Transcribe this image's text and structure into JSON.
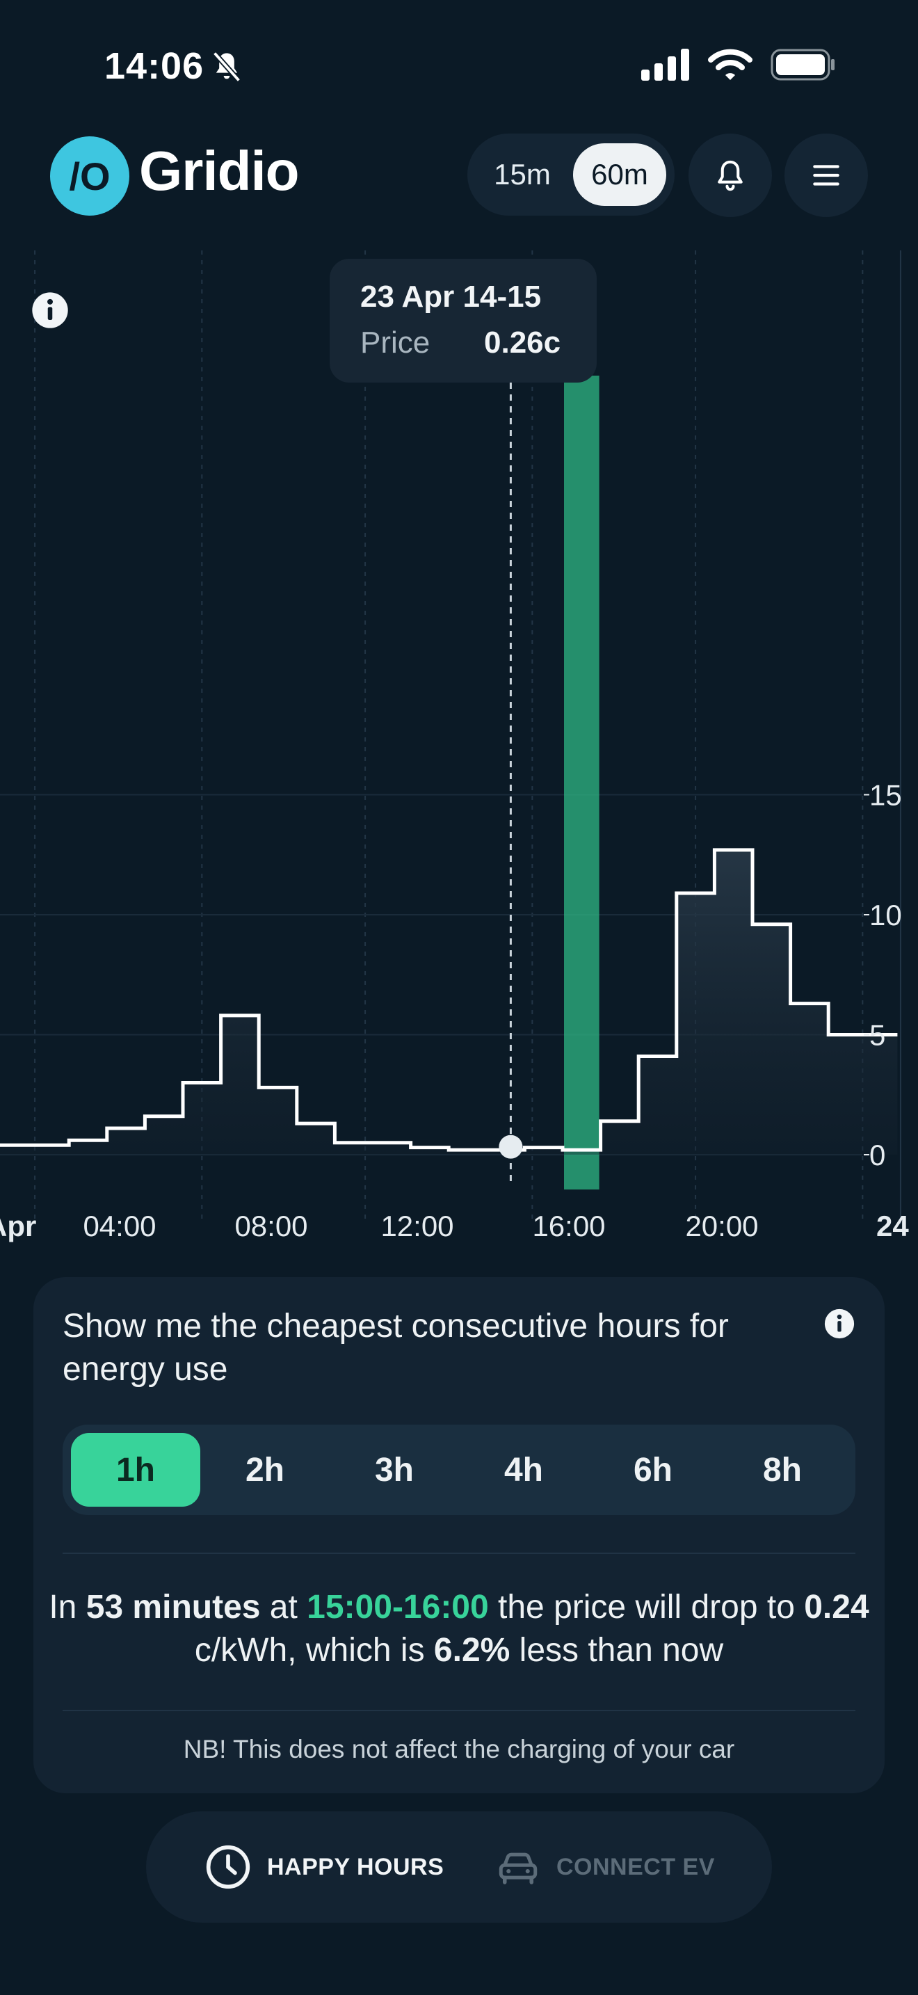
{
  "status": {
    "time": "14:06"
  },
  "app": {
    "logo_mark": "/O",
    "name": "Gridio"
  },
  "resolution": {
    "options": [
      "15m",
      "60m"
    ],
    "selected": "60m"
  },
  "header": {
    "bell_icon": "bell-icon",
    "menu_icon": "hamburger-menu-icon"
  },
  "tooltip": {
    "date": "23 Apr 14-15",
    "label": "Price",
    "value": "0.26c"
  },
  "chart_data": {
    "type": "line",
    "step": true,
    "x_tick_labels": [
      "Apr",
      "04:00",
      "08:00",
      "12:00",
      "16:00",
      "20:00",
      "24"
    ],
    "y_tick_labels": [
      "0",
      "5",
      "10",
      "15"
    ],
    "ylim": [
      0,
      15
    ],
    "hours": [
      0,
      1,
      2,
      3,
      4,
      5,
      6,
      7,
      8,
      9,
      10,
      11,
      12,
      13,
      14,
      15,
      16,
      17,
      18,
      19,
      20,
      21,
      22,
      23
    ],
    "values": [
      0.4,
      0.4,
      0.6,
      1.1,
      1.6,
      3.0,
      5.8,
      2.8,
      1.3,
      0.5,
      0.5,
      0.3,
      0.2,
      0.2,
      0.3,
      0.2,
      1.4,
      4.1,
      10.9,
      12.7,
      9.6,
      6.3,
      5.0,
      5.0
    ],
    "highlight_hour": 15,
    "highlight_color": "#2fb784",
    "cursor_hour": 14,
    "grid": true
  },
  "happy": {
    "title": "Show me the cheapest consecutive hours for energy use",
    "options": [
      "1h",
      "2h",
      "3h",
      "4h",
      "6h",
      "8h"
    ],
    "selected": "1h",
    "msg": {
      "p1": "In ",
      "minutes": "53 minutes",
      "p2": " at ",
      "window": "15:00-16:00",
      "p3": " the price will drop to ",
      "price": "0.24",
      "p4": " c/kWh, which is ",
      "percent": "6.2%",
      "p5": " less than now"
    },
    "note": "NB! This does not affect the charging of your car"
  },
  "nav": {
    "happy_hours": "HAPPY HOURS",
    "connect_ev": "CONNECT EV"
  },
  "colors": {
    "accent_green": "#38d39a",
    "logo_blue": "#3ec6e0",
    "background": "#0b1a26"
  }
}
